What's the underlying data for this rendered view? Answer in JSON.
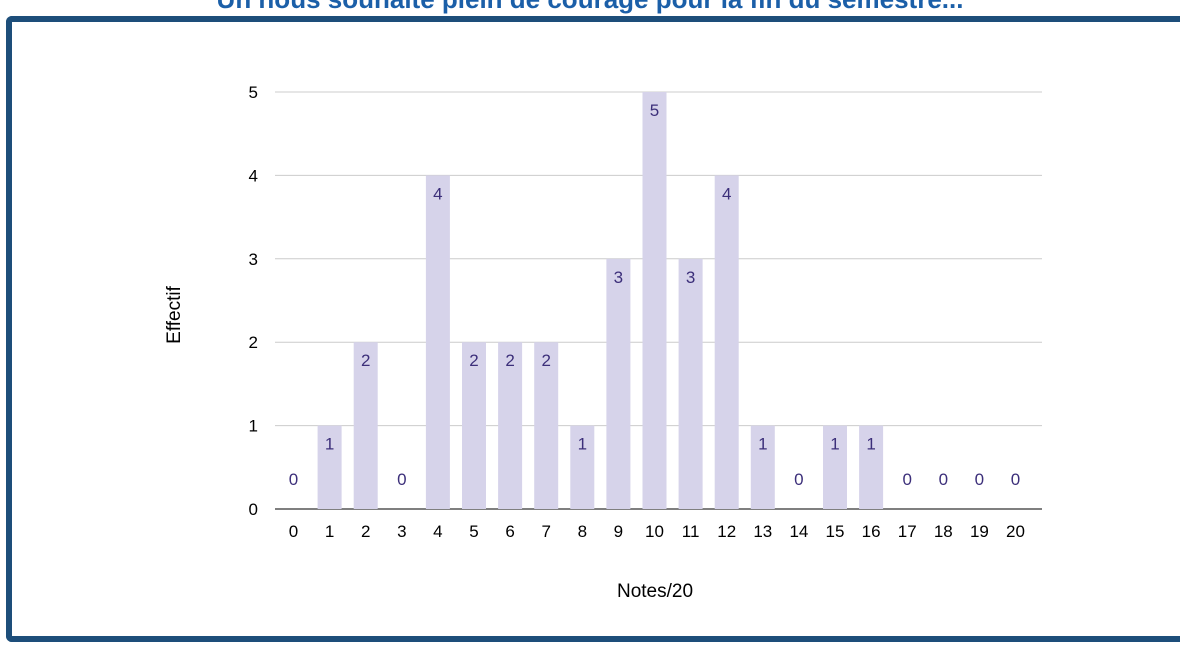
{
  "page": {
    "banner_title": "Un nous souhaite plein de courage pour la fin du semestre..."
  },
  "colors": {
    "bar": "#d6d3ea",
    "data_label": "#3c2f7a",
    "grid": "#cccccc",
    "axis": "#333333",
    "frame": "#1d4e7a",
    "banner_text": "#1b5fa8"
  },
  "chart_data": {
    "type": "bar",
    "title": "",
    "xlabel": "Notes/20",
    "ylabel": "Effectif",
    "ylim": [
      0,
      5
    ],
    "yticks": [
      0,
      1,
      2,
      3,
      4,
      5
    ],
    "grid": true,
    "legend": "none",
    "categories": [
      "0",
      "1",
      "2",
      "3",
      "4",
      "5",
      "6",
      "7",
      "8",
      "9",
      "10",
      "11",
      "12",
      "13",
      "14",
      "15",
      "16",
      "17",
      "18",
      "19",
      "20"
    ],
    "values": [
      0,
      1,
      2,
      0,
      4,
      2,
      2,
      2,
      1,
      3,
      5,
      3,
      4,
      1,
      0,
      1,
      1,
      0,
      0,
      0,
      0
    ]
  }
}
